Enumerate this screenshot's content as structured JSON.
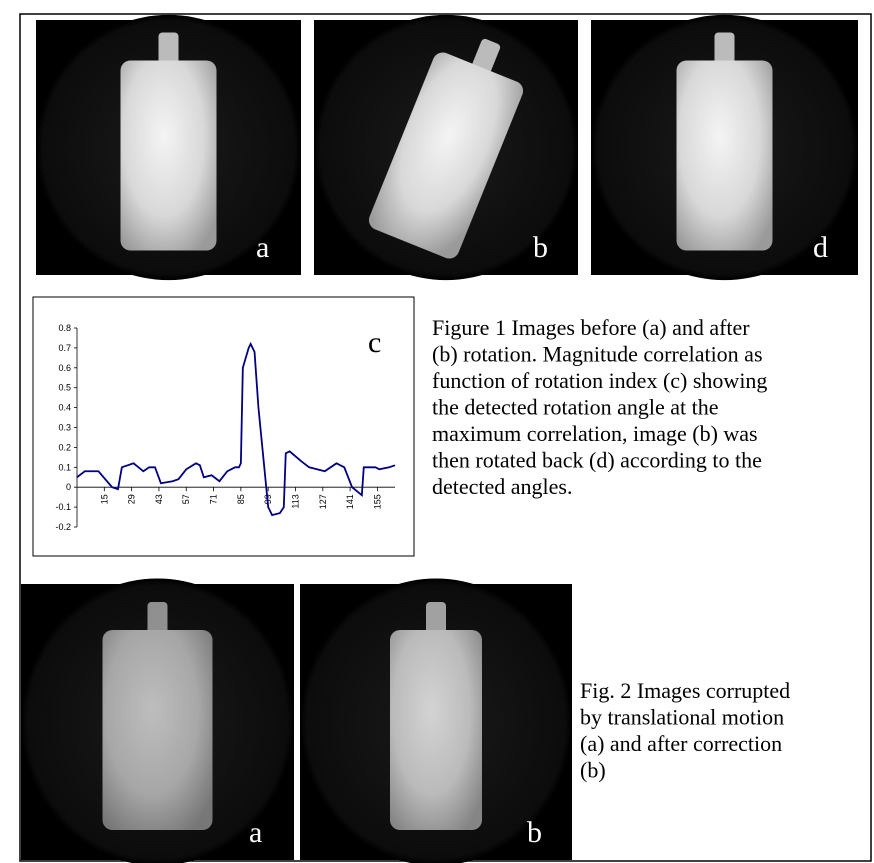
{
  "figure1": {
    "panels": [
      "a",
      "b",
      "d"
    ],
    "chart_label": "c",
    "caption": [
      "Figure 1 Images before (a) and after",
      "(b) rotation. Magnitude correlation as",
      "function of rotation index (c) showing",
      "the detected rotation angle at the",
      "maximum correlation, image (b) was",
      "then rotated back (d) according to the",
      "detected angles."
    ]
  },
  "chart_data": {
    "type": "line",
    "x": [
      1,
      5,
      12,
      19,
      22,
      24,
      30,
      35,
      38,
      41,
      44,
      50,
      53,
      57,
      62,
      64,
      66,
      70,
      74,
      78,
      82,
      84,
      85,
      86,
      89,
      90,
      92,
      94,
      97,
      99,
      101,
      105,
      107,
      108,
      110,
      116,
      120,
      124,
      128,
      134,
      138,
      142,
      147,
      148,
      154,
      156,
      161,
      164
    ],
    "series": [
      {
        "color": "#000080",
        "values": [
          0.05,
          0.08,
          0.08,
          0,
          -0.01,
          0.1,
          0.12,
          0.08,
          0.1,
          0.1,
          0.02,
          0.03,
          0.04,
          0.09,
          0.12,
          0.11,
          0.05,
          0.06,
          0.03,
          0.08,
          0.1,
          0.1,
          0.12,
          0.6,
          0.7,
          0.72,
          0.68,
          0.4,
          0.1,
          -0.1,
          -0.14,
          -0.13,
          -0.1,
          0.17,
          0.18,
          0.13,
          0.1,
          0.09,
          0.08,
          0.12,
          0.1,
          0,
          -0.04,
          0.1,
          0.1,
          0.09,
          0.1,
          0.11
        ]
      }
    ],
    "xlim": [
      1,
      164
    ],
    "xticks": [
      15,
      29,
      43,
      57,
      71,
      85,
      99,
      113,
      127,
      141,
      155
    ],
    "ylim": [
      -0.2,
      0.8
    ],
    "yticks": [
      -0.2,
      -0.1,
      0,
      0.1,
      0.2,
      0.3,
      0.4,
      0.5,
      0.6,
      0.7,
      0.8
    ]
  },
  "figure2": {
    "panels": [
      "a",
      "b"
    ],
    "caption": [
      "Fig. 2 Images corrupted",
      "by translational motion",
      "(a) and after correction",
      "(b)"
    ]
  }
}
